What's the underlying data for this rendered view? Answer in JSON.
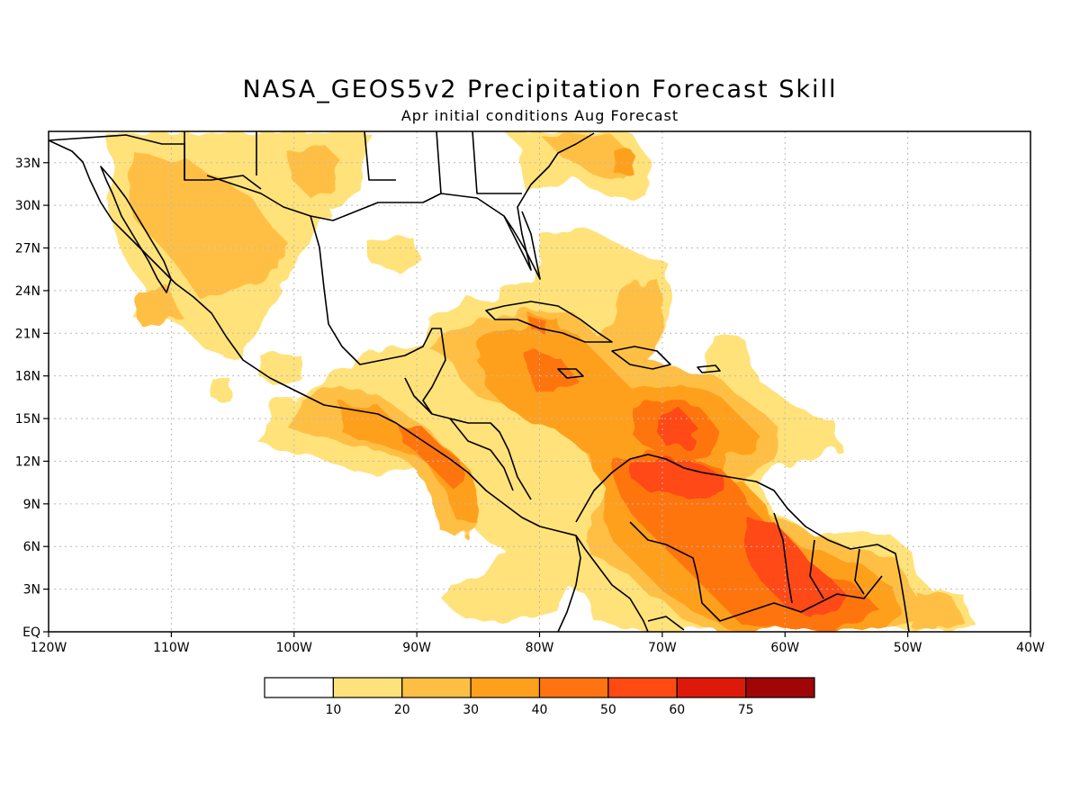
{
  "title": "NASA_GEOS5v2 Precipitation Forecast Skill",
  "subtitle": "Apr initial conditions   Aug Forecast",
  "map": {
    "lon_range": [
      -120,
      -40
    ],
    "lat_range": [
      0,
      35
    ],
    "lon_ticks": [
      {
        "value": -120,
        "label": "120W"
      },
      {
        "value": -110,
        "label": "110W"
      },
      {
        "value": -100,
        "label": "100W"
      },
      {
        "value": -90,
        "label": "90W"
      },
      {
        "value": -80,
        "label": "80W"
      },
      {
        "value": -70,
        "label": "70W"
      },
      {
        "value": -60,
        "label": "60W"
      },
      {
        "value": -50,
        "label": "50W"
      },
      {
        "value": -40,
        "label": "40W"
      }
    ],
    "lat_ticks": [
      {
        "value": 0,
        "label": "EQ"
      },
      {
        "value": 3,
        "label": "3N"
      },
      {
        "value": 6,
        "label": "6N"
      },
      {
        "value": 9,
        "label": "9N"
      },
      {
        "value": 12,
        "label": "12N"
      },
      {
        "value": 15,
        "label": "15N"
      },
      {
        "value": 18,
        "label": "18N"
      },
      {
        "value": 21,
        "label": "21N"
      },
      {
        "value": 24,
        "label": "24N"
      },
      {
        "value": 27,
        "label": "27N"
      },
      {
        "value": 30,
        "label": "30N"
      },
      {
        "value": 33,
        "label": "33N"
      }
    ],
    "grid": true
  },
  "colorbar": {
    "colors": [
      "#ffffff",
      "#ffe27a",
      "#ffbf45",
      "#ffa01c",
      "#ff7410",
      "#ff4a12",
      "#dd1a0a",
      "#a10606"
    ],
    "labels": [
      "10",
      "20",
      "30",
      "40",
      "50",
      "60",
      "75"
    ]
  }
}
